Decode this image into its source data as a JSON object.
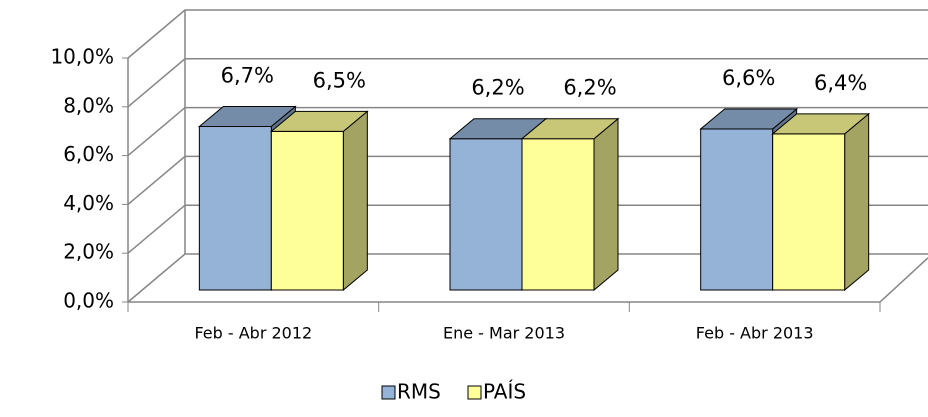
{
  "chart_data": {
    "type": "bar3d",
    "categories": [
      "Feb - Abr 2012",
      "Ene - Mar 2013",
      "Feb - Abr 2013"
    ],
    "series": [
      {
        "name": "RMS",
        "color": "#95b3d7",
        "values": [
          6.7,
          6.2,
          6.6
        ],
        "value_labels": [
          "6,7%",
          "6,2%",
          "6,6%"
        ]
      },
      {
        "name": "PAÍS",
        "color": "#ffff99",
        "values": [
          6.5,
          6.2,
          6.4
        ],
        "value_labels": [
          "6,5%",
          "6,2%",
          "6,4%"
        ]
      }
    ],
    "ylim": [
      0,
      10
    ],
    "yticks": [
      {
        "value": 0,
        "label": "0,0%"
      },
      {
        "value": 2,
        "label": "2,0%"
      },
      {
        "value": 4,
        "label": "4,0%"
      },
      {
        "value": 6,
        "label": "6,0%"
      },
      {
        "value": 8,
        "label": "8,0%"
      },
      {
        "value": 10,
        "label": "10,0%"
      }
    ],
    "grid": true,
    "legend": "bottom"
  }
}
